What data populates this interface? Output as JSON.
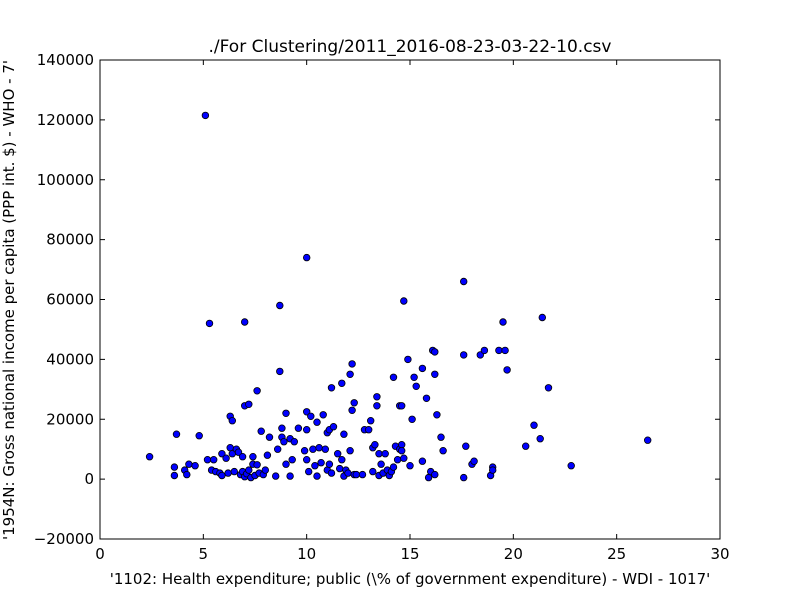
{
  "chart_data": {
    "type": "scatter",
    "title": "./For Clustering/2011_2016-08-23-03-22-10.csv",
    "xlabel": "'1102: Health expenditure; public  (\\% of government expenditure) - WDI - 1017'",
    "ylabel": "'1954N: Gross national income per capita (PPP int. $) - WHO - 7'",
    "xlim": [
      0,
      30
    ],
    "ylim": [
      -20000,
      140000
    ],
    "xticks": [
      "0",
      "5",
      "10",
      "15",
      "20",
      "25",
      "30"
    ],
    "yticks": [
      "−20000",
      "0",
      "20000",
      "40000",
      "60000",
      "80000",
      "100000",
      "120000",
      "140000"
    ],
    "grid": false,
    "marker_color": "#0000ff",
    "marker_edge": "#000000",
    "series": [
      {
        "points": [
          [
            2.4,
            7500
          ],
          [
            3.7,
            15000
          ],
          [
            3.6,
            4000
          ],
          [
            3.6,
            1200
          ],
          [
            4.1,
            3000
          ],
          [
            4.2,
            1500
          ],
          [
            4.3,
            5000
          ],
          [
            4.6,
            4500
          ],
          [
            4.8,
            14500
          ],
          [
            5.1,
            121500
          ],
          [
            5.3,
            52000
          ],
          [
            5.2,
            6500
          ],
          [
            5.4,
            3000
          ],
          [
            5.6,
            2500
          ],
          [
            5.5,
            6500
          ],
          [
            5.8,
            2000
          ],
          [
            5.9,
            8500
          ],
          [
            5.9,
            1200
          ],
          [
            6.1,
            7000
          ],
          [
            6.2,
            2000
          ],
          [
            6.3,
            10500
          ],
          [
            6.3,
            21000
          ],
          [
            6.4,
            19500
          ],
          [
            6.4,
            8500
          ],
          [
            6.5,
            2500
          ],
          [
            6.6,
            10000
          ],
          [
            6.7,
            9000
          ],
          [
            6.8,
            1500
          ],
          [
            6.9,
            2500
          ],
          [
            6.9,
            7500
          ],
          [
            7.0,
            52500
          ],
          [
            7.0,
            24500
          ],
          [
            7.0,
            800
          ],
          [
            7.1,
            1800
          ],
          [
            7.2,
            3000
          ],
          [
            7.2,
            25000
          ],
          [
            7.3,
            500
          ],
          [
            7.4,
            7500
          ],
          [
            7.4,
            5000
          ],
          [
            7.5,
            1200
          ],
          [
            7.6,
            29500
          ],
          [
            7.6,
            4800
          ],
          [
            7.7,
            2000
          ],
          [
            7.8,
            16000
          ],
          [
            7.9,
            1500
          ],
          [
            8.0,
            3000
          ],
          [
            8.1,
            8000
          ],
          [
            8.2,
            14000
          ],
          [
            8.5,
            1000
          ],
          [
            8.6,
            10000
          ],
          [
            8.7,
            58000
          ],
          [
            8.7,
            36000
          ],
          [
            8.8,
            17000
          ],
          [
            8.8,
            14000
          ],
          [
            8.9,
            12500
          ],
          [
            9.0,
            22000
          ],
          [
            9.0,
            5000
          ],
          [
            9.2,
            13500
          ],
          [
            9.2,
            1000
          ],
          [
            9.3,
            6500
          ],
          [
            9.4,
            12500
          ],
          [
            9.6,
            17000
          ],
          [
            9.9,
            9500
          ],
          [
            10.0,
            74000
          ],
          [
            10.0,
            22500
          ],
          [
            10.0,
            16500
          ],
          [
            10.0,
            6500
          ],
          [
            10.1,
            2500
          ],
          [
            10.2,
            21000
          ],
          [
            10.3,
            10000
          ],
          [
            10.4,
            4500
          ],
          [
            10.5,
            1000
          ],
          [
            10.5,
            19000
          ],
          [
            10.6,
            10500
          ],
          [
            10.7,
            5500
          ],
          [
            10.8,
            21500
          ],
          [
            10.9,
            10000
          ],
          [
            11.0,
            15500
          ],
          [
            11.0,
            3000
          ],
          [
            11.1,
            5000
          ],
          [
            11.1,
            16500
          ],
          [
            11.2,
            2000
          ],
          [
            11.2,
            30500
          ],
          [
            11.3,
            17500
          ],
          [
            11.5,
            8500
          ],
          [
            11.6,
            3500
          ],
          [
            11.7,
            32000
          ],
          [
            11.7,
            6500
          ],
          [
            11.8,
            15000
          ],
          [
            11.8,
            1000
          ],
          [
            11.9,
            3000
          ],
          [
            12.0,
            2000
          ],
          [
            12.1,
            35000
          ],
          [
            12.1,
            9500
          ],
          [
            12.2,
            38500
          ],
          [
            12.2,
            23000
          ],
          [
            12.3,
            25500
          ],
          [
            12.3,
            1500
          ],
          [
            12.4,
            1500
          ],
          [
            12.7,
            1500
          ],
          [
            12.8,
            16500
          ],
          [
            13.0,
            16500
          ],
          [
            13.1,
            19500
          ],
          [
            13.2,
            10500
          ],
          [
            13.2,
            2500
          ],
          [
            13.3,
            11500
          ],
          [
            13.4,
            27500
          ],
          [
            13.4,
            24500
          ],
          [
            13.5,
            8500
          ],
          [
            13.5,
            1200
          ],
          [
            13.6,
            5000
          ],
          [
            13.7,
            2000
          ],
          [
            13.8,
            8500
          ],
          [
            13.9,
            3000
          ],
          [
            14.0,
            1200
          ],
          [
            14.1,
            2500
          ],
          [
            14.2,
            34000
          ],
          [
            14.2,
            4000
          ],
          [
            14.3,
            11000
          ],
          [
            14.4,
            6500
          ],
          [
            14.5,
            10000
          ],
          [
            14.5,
            24500
          ],
          [
            14.6,
            11500
          ],
          [
            14.6,
            24500
          ],
          [
            14.6,
            9500
          ],
          [
            14.7,
            59500
          ],
          [
            14.7,
            7000
          ],
          [
            14.9,
            40000
          ],
          [
            15.0,
            4500
          ],
          [
            15.1,
            20000
          ],
          [
            15.2,
            34000
          ],
          [
            15.3,
            31000
          ],
          [
            15.6,
            6000
          ],
          [
            15.6,
            37000
          ],
          [
            15.8,
            27000
          ],
          [
            15.9,
            500
          ],
          [
            16.0,
            2500
          ],
          [
            16.1,
            43000
          ],
          [
            16.2,
            42500
          ],
          [
            16.2,
            35000
          ],
          [
            16.2,
            1500
          ],
          [
            16.3,
            21500
          ],
          [
            16.5,
            14000
          ],
          [
            16.6,
            9500
          ],
          [
            17.6,
            66000
          ],
          [
            17.6,
            41500
          ],
          [
            17.6,
            500
          ],
          [
            17.7,
            11000
          ],
          [
            18.0,
            5000
          ],
          [
            18.1,
            6000
          ],
          [
            18.4,
            41500
          ],
          [
            18.6,
            43000
          ],
          [
            18.9,
            1200
          ],
          [
            19.0,
            4000
          ],
          [
            19.0,
            3000
          ],
          [
            19.3,
            43000
          ],
          [
            19.5,
            52500
          ],
          [
            19.6,
            43000
          ],
          [
            19.7,
            36500
          ],
          [
            20.6,
            11000
          ],
          [
            21.0,
            18000
          ],
          [
            21.3,
            13500
          ],
          [
            21.4,
            54000
          ],
          [
            21.7,
            30500
          ],
          [
            22.8,
            4500
          ],
          [
            26.5,
            13000
          ]
        ]
      }
    ]
  }
}
